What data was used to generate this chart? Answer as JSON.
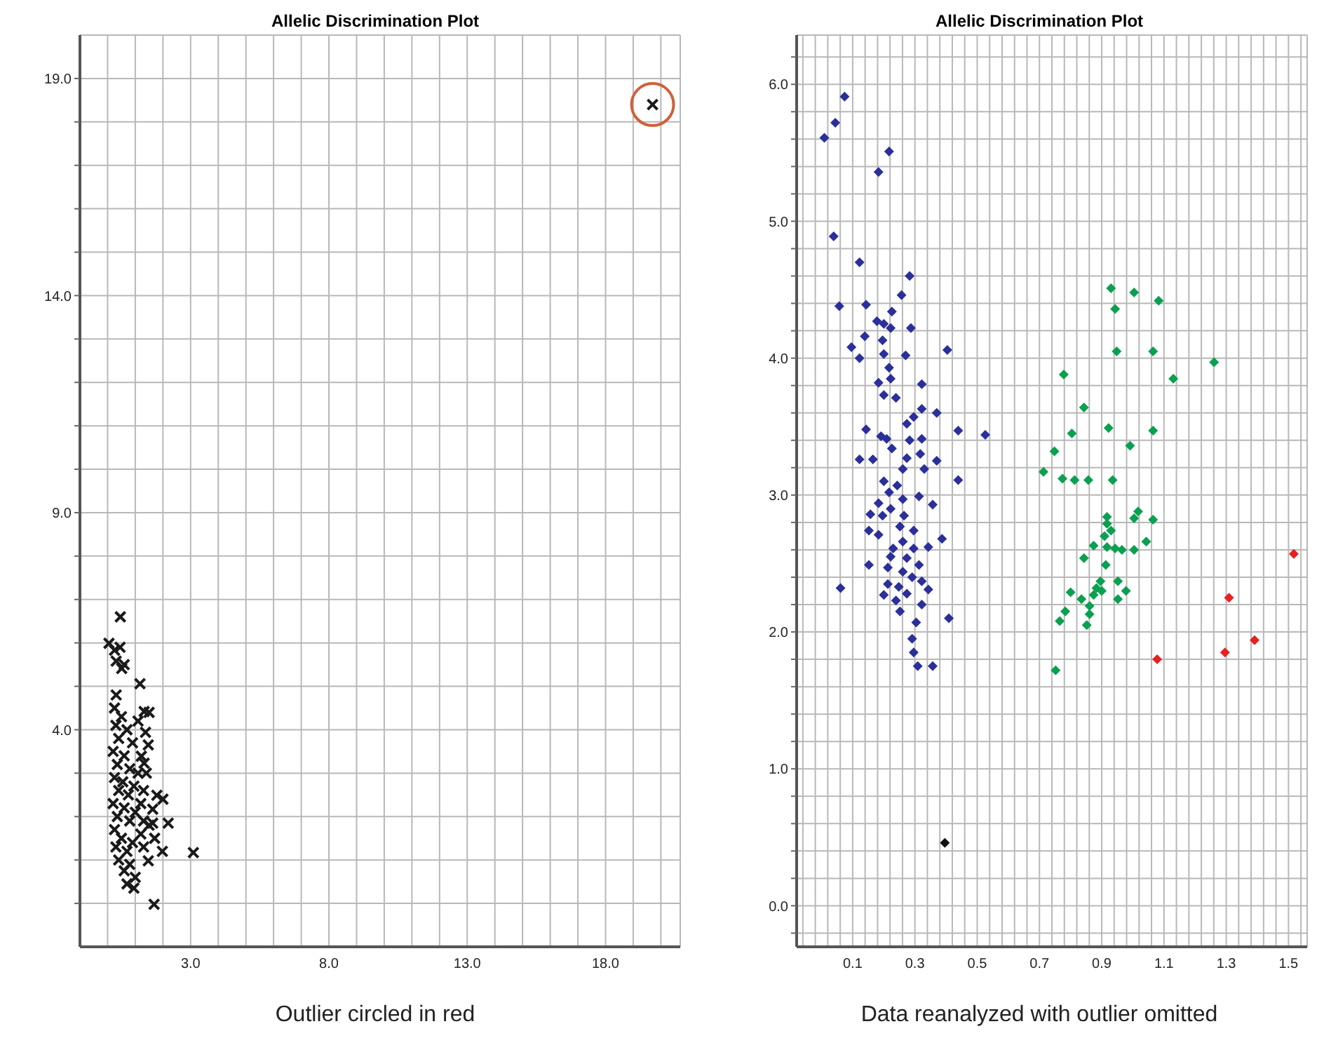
{
  "chart_data": [
    {
      "type": "scatter",
      "title": "Allelic Discrimination Plot",
      "marker": "cross",
      "grid": true,
      "xlim": [
        -1,
        20.7
      ],
      "ylim": [
        -1,
        20
      ],
      "xticks": [
        {
          "value": -1,
          "label": null
        },
        {
          "value": 0,
          "label": null
        },
        {
          "value": 1,
          "label": null
        },
        {
          "value": 2,
          "label": null
        },
        {
          "value": 3,
          "label": "3.0"
        },
        {
          "value": 4,
          "label": null
        },
        {
          "value": 5,
          "label": null
        },
        {
          "value": 6,
          "label": null
        },
        {
          "value": 7,
          "label": null
        },
        {
          "value": 8,
          "label": "8.0"
        },
        {
          "value": 9,
          "label": null
        },
        {
          "value": 10,
          "label": null
        },
        {
          "value": 11,
          "label": null
        },
        {
          "value": 12,
          "label": null
        },
        {
          "value": 13,
          "label": "13.0"
        },
        {
          "value": 14,
          "label": null
        },
        {
          "value": 15,
          "label": null
        },
        {
          "value": 16,
          "label": null
        },
        {
          "value": 17,
          "label": null
        },
        {
          "value": 18,
          "label": "18.0"
        },
        {
          "value": 19,
          "label": null
        },
        {
          "value": 20,
          "label": null
        }
      ],
      "yticks": [
        {
          "value": 0,
          "label": null
        },
        {
          "value": 1,
          "label": null
        },
        {
          "value": 2,
          "label": null
        },
        {
          "value": 3,
          "label": null
        },
        {
          "value": 4,
          "label": "4.0"
        },
        {
          "value": 5,
          "label": null
        },
        {
          "value": 6,
          "label": null
        },
        {
          "value": 7,
          "label": null
        },
        {
          "value": 8,
          "label": null
        },
        {
          "value": 9,
          "label": "9.0"
        },
        {
          "value": 10,
          "label": null
        },
        {
          "value": 11,
          "label": null
        },
        {
          "value": 12,
          "label": null
        },
        {
          "value": 13,
          "label": null
        },
        {
          "value": 14,
          "label": "14.0"
        },
        {
          "value": 15,
          "label": null
        },
        {
          "value": 16,
          "label": null
        },
        {
          "value": 17,
          "label": null
        },
        {
          "value": 18,
          "label": null
        },
        {
          "value": 19,
          "label": "19.0"
        }
      ],
      "annotations": [
        "Outlier circled in red"
      ],
      "series": [
        {
          "color": "#1a1a1a",
          "x": [
            19.7,
            0.46,
            0.05,
            0.25,
            0.31,
            0.51,
            1.17,
            0.31,
            1.32,
            1.37,
            1.47,
            1.22,
            1.32,
            1.78,
            1.63,
            2.19,
            1.63,
            3.1,
            1.98,
            1.47,
            1.68,
            0.25,
            0.5,
            0.3,
            0.7,
            0.4,
            0.9,
            0.2,
            0.6,
            0.35,
            0.8,
            0.25,
            0.55,
            0.95,
            0.4,
            0.75,
            0.2,
            0.6,
            1.0,
            0.35,
            0.8,
            0.25,
            0.5,
            0.9,
            0.3,
            0.7,
            1.3,
            0.4,
            0.8,
            0.6,
            1.0,
            0.7,
            0.95,
            1.2,
            1.5,
            1.3,
            1.1,
            1.4,
            1.2,
            1.1,
            1.5,
            1.3,
            2.0,
            1.7,
            0.6,
            0.45
          ],
          "values": [
            18.4,
            6.6,
            5.99,
            5.83,
            5.58,
            5.41,
            5.06,
            4.8,
            4.42,
            3.94,
            3.65,
            3.39,
            3.23,
            2.49,
            2.17,
            1.85,
            1.85,
            1.17,
            1.2,
            0.98,
            -0.02,
            4.5,
            4.3,
            4.1,
            4.0,
            3.8,
            3.7,
            3.5,
            3.4,
            3.2,
            3.1,
            2.9,
            2.8,
            2.7,
            2.6,
            2.5,
            2.3,
            2.2,
            2.1,
            2.0,
            1.9,
            1.7,
            1.5,
            1.4,
            1.3,
            1.2,
            1.3,
            1.0,
            0.9,
            0.75,
            0.6,
            0.45,
            0.35,
            1.6,
            1.8,
            2.6,
            3.0,
            3.0,
            2.3,
            4.2,
            4.4,
            1.9,
            2.4,
            1.5,
            5.5,
            5.9
          ]
        }
      ]
    },
    {
      "type": "scatter",
      "title": "Allelic Discrimination Plot",
      "marker": "diamond",
      "grid": true,
      "xlim": [
        -0.08,
        1.56
      ],
      "ylim": [
        -0.3,
        6.36
      ],
      "xticks": [
        {
          "value": -0.06,
          "label": null
        },
        {
          "value": -0.02,
          "label": null
        },
        {
          "value": 0.02,
          "label": null
        },
        {
          "value": 0.06,
          "label": null
        },
        {
          "value": 0.1,
          "label": "0.1"
        },
        {
          "value": 0.14,
          "label": null
        },
        {
          "value": 0.18,
          "label": null
        },
        {
          "value": 0.22,
          "label": null
        },
        {
          "value": 0.26,
          "label": null
        },
        {
          "value": 0.3,
          "label": "0.3"
        },
        {
          "value": 0.34,
          "label": null
        },
        {
          "value": 0.38,
          "label": null
        },
        {
          "value": 0.42,
          "label": null
        },
        {
          "value": 0.46,
          "label": null
        },
        {
          "value": 0.5,
          "label": "0.5"
        },
        {
          "value": 0.54,
          "label": null
        },
        {
          "value": 0.58,
          "label": null
        },
        {
          "value": 0.62,
          "label": null
        },
        {
          "value": 0.66,
          "label": null
        },
        {
          "value": 0.7,
          "label": "0.7"
        },
        {
          "value": 0.74,
          "label": null
        },
        {
          "value": 0.78,
          "label": null
        },
        {
          "value": 0.82,
          "label": null
        },
        {
          "value": 0.86,
          "label": null
        },
        {
          "value": 0.9,
          "label": "0.9"
        },
        {
          "value": 0.94,
          "label": null
        },
        {
          "value": 0.98,
          "label": null
        },
        {
          "value": 1.02,
          "label": null
        },
        {
          "value": 1.06,
          "label": null
        },
        {
          "value": 1.1,
          "label": "1.1"
        },
        {
          "value": 1.14,
          "label": null
        },
        {
          "value": 1.18,
          "label": null
        },
        {
          "value": 1.22,
          "label": null
        },
        {
          "value": 1.26,
          "label": null
        },
        {
          "value": 1.3,
          "label": "1.3"
        },
        {
          "value": 1.34,
          "label": null
        },
        {
          "value": 1.38,
          "label": null
        },
        {
          "value": 1.42,
          "label": null
        },
        {
          "value": 1.46,
          "label": null
        },
        {
          "value": 1.5,
          "label": "1.5"
        },
        {
          "value": 1.54,
          "label": null
        }
      ],
      "yticks": [
        {
          "value": -0.2,
          "label": null
        },
        {
          "value": 0,
          "label": "0.0"
        },
        {
          "value": 0.2,
          "label": null
        },
        {
          "value": 0.4,
          "label": null
        },
        {
          "value": 0.6,
          "label": null
        },
        {
          "value": 0.8,
          "label": null
        },
        {
          "value": 1,
          "label": "1.0"
        },
        {
          "value": 1.2,
          "label": null
        },
        {
          "value": 1.4,
          "label": null
        },
        {
          "value": 1.6,
          "label": null
        },
        {
          "value": 1.8,
          "label": null
        },
        {
          "value": 2,
          "label": "2.0"
        },
        {
          "value": 2.2,
          "label": null
        },
        {
          "value": 2.4,
          "label": null
        },
        {
          "value": 2.6,
          "label": null
        },
        {
          "value": 2.8,
          "label": null
        },
        {
          "value": 3,
          "label": "3.0"
        },
        {
          "value": 3.2,
          "label": null
        },
        {
          "value": 3.4,
          "label": null
        },
        {
          "value": 3.6,
          "label": null
        },
        {
          "value": 3.8,
          "label": null
        },
        {
          "value": 4,
          "label": "4.0"
        },
        {
          "value": 4.2,
          "label": null
        },
        {
          "value": 4.4,
          "label": null
        },
        {
          "value": 4.6,
          "label": null
        },
        {
          "value": 4.8,
          "label": null
        },
        {
          "value": 5,
          "label": "5.0"
        },
        {
          "value": 5.2,
          "label": null
        },
        {
          "value": 5.4,
          "label": null
        },
        {
          "value": 5.6,
          "label": null
        },
        {
          "value": 5.8,
          "label": null
        },
        {
          "value": 6,
          "label": "6.0"
        },
        {
          "value": 6.2,
          "label": null
        }
      ],
      "annotations": [
        "Data reanalyzed with outlier omitted"
      ],
      "series": [
        {
          "color": "#2b2f9a",
          "x": [
            0.074,
            0.044,
            0.009,
            0.217,
            0.183,
            0.039,
            0.122,
            0.283,
            0.257,
            0.057,
            0.143,
            0.226,
            0.178,
            0.2,
            0.222,
            0.287,
            0.139,
            0.196,
            0.096,
            0.404,
            0.2,
            0.122,
            0.27,
            0.217,
            0.222,
            0.183,
            0.322,
            0.2,
            0.239,
            0.322,
            0.37,
            0.296,
            0.274,
            0.143,
            0.439,
            0.526,
            0.191,
            0.209,
            0.322,
            0.283,
            0.226,
            0.317,
            0.122,
            0.165,
            0.274,
            0.37,
            0.261,
            0.33,
            0.439,
            0.2,
            0.243,
            0.217,
            0.313,
            0.261,
            0.183,
            0.357,
            0.222,
            0.157,
            0.265,
            0.196,
            0.252,
            0.152,
            0.183,
            0.296,
            0.261,
            0.387,
            0.23,
            0.296,
            0.343,
            0.222,
            0.274,
            0.313,
            0.152,
            0.213,
            0.261,
            0.291,
            0.322,
            0.213,
            0.248,
            0.061,
            0.343,
            0.2,
            0.274,
            0.239,
            0.322,
            0.252,
            0.409,
            0.304,
            0.291,
            0.296,
            0.309,
            0.357
          ],
          "values": [
            5.91,
            5.72,
            5.61,
            5.51,
            5.36,
            4.89,
            4.7,
            4.6,
            4.46,
            4.38,
            4.39,
            4.34,
            4.27,
            4.25,
            4.22,
            4.22,
            4.16,
            4.13,
            4.08,
            4.06,
            4.03,
            4.0,
            4.02,
            3.93,
            3.85,
            3.82,
            3.81,
            3.73,
            3.71,
            3.63,
            3.6,
            3.57,
            3.52,
            3.48,
            3.47,
            3.44,
            3.43,
            3.41,
            3.41,
            3.4,
            3.34,
            3.3,
            3.26,
            3.26,
            3.27,
            3.25,
            3.19,
            3.19,
            3.11,
            3.1,
            3.07,
            3.02,
            2.99,
            2.97,
            2.94,
            2.93,
            2.9,
            2.86,
            2.85,
            2.85,
            2.77,
            2.74,
            2.71,
            2.74,
            2.66,
            2.68,
            2.61,
            2.61,
            2.62,
            2.55,
            2.54,
            2.49,
            2.49,
            2.47,
            2.44,
            2.4,
            2.37,
            2.35,
            2.33,
            2.32,
            2.31,
            2.27,
            2.28,
            2.23,
            2.2,
            2.15,
            2.1,
            2.07,
            1.95,
            1.85,
            1.75,
            1.75
          ]
        },
        {
          "color": "#0aa050",
          "x": [
            0.93,
            1.004,
            1.083,
            0.943,
            0.948,
            1.065,
            1.261,
            0.778,
            1.13,
            0.843,
            0.922,
            1.065,
            0.804,
            0.991,
            0.748,
            0.713,
            0.774,
            0.813,
            0.857,
            0.935,
            1.017,
            1.004,
            1.065,
            0.917,
            0.917,
            0.93,
            0.909,
            1.043,
            0.874,
            0.917,
            0.943,
            0.965,
            1.004,
            0.843,
            0.913,
            0.896,
            0.952,
            0.883,
            0.9,
            0.978,
            0.8,
            0.874,
            0.835,
            0.952,
            0.861,
            0.783,
            0.861,
            0.765,
            0.852,
            0.752
          ],
          "values": [
            4.51,
            4.48,
            4.42,
            4.36,
            4.05,
            4.05,
            3.97,
            3.88,
            3.85,
            3.64,
            3.49,
            3.47,
            3.45,
            3.36,
            3.32,
            3.17,
            3.12,
            3.11,
            3.11,
            3.11,
            2.88,
            2.83,
            2.82,
            2.84,
            2.79,
            2.74,
            2.7,
            2.66,
            2.63,
            2.62,
            2.61,
            2.6,
            2.6,
            2.54,
            2.49,
            2.37,
            2.37,
            2.32,
            2.3,
            2.3,
            2.29,
            2.27,
            2.24,
            2.24,
            2.19,
            2.15,
            2.13,
            2.08,
            2.05,
            1.72
          ]
        },
        {
          "color": "#e82020",
          "x": [
            1.517,
            1.309,
            1.391,
            1.296,
            1.078
          ],
          "values": [
            2.57,
            2.25,
            1.94,
            1.85,
            1.8
          ]
        },
        {
          "color": "#111111",
          "x": [
            0.396
          ],
          "values": [
            0.46
          ]
        }
      ]
    }
  ]
}
